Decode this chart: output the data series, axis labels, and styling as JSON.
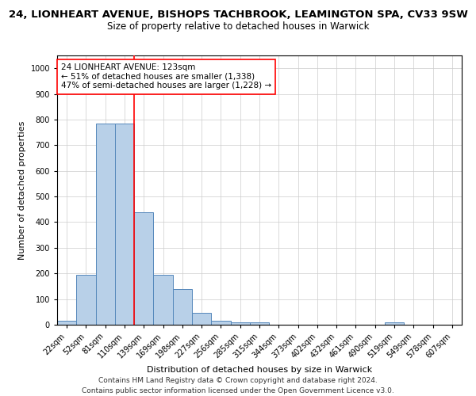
{
  "title_line1": "24, LIONHEART AVENUE, BISHOPS TACHBROOK, LEAMINGTON SPA, CV33 9SW",
  "title_line2": "Size of property relative to detached houses in Warwick",
  "xlabel": "Distribution of detached houses by size in Warwick",
  "ylabel": "Number of detached properties",
  "categories": [
    "22sqm",
    "52sqm",
    "81sqm",
    "110sqm",
    "139sqm",
    "169sqm",
    "198sqm",
    "227sqm",
    "256sqm",
    "285sqm",
    "315sqm",
    "344sqm",
    "373sqm",
    "402sqm",
    "432sqm",
    "461sqm",
    "490sqm",
    "519sqm",
    "549sqm",
    "578sqm",
    "607sqm"
  ],
  "values": [
    15,
    195,
    785,
    785,
    440,
    195,
    140,
    45,
    15,
    10,
    10,
    0,
    0,
    0,
    0,
    0,
    0,
    10,
    0,
    0,
    0
  ],
  "bar_color": "#b8d0e8",
  "bar_edge_color": "#5588bb",
  "bar_linewidth": 0.7,
  "vline_color": "red",
  "vline_linewidth": 1.2,
  "vline_pos": 3.5,
  "ylim": [
    0,
    1050
  ],
  "yticks": [
    0,
    100,
    200,
    300,
    400,
    500,
    600,
    700,
    800,
    900,
    1000
  ],
  "grid_color": "#cccccc",
  "background_color": "#ffffff",
  "annotation_line1": "24 LIONHEART AVENUE: 123sqm",
  "annotation_line2": "← 51% of detached houses are smaller (1,338)",
  "annotation_line3": "47% of semi-detached houses are larger (1,228) →",
  "annotation_box_color": "white",
  "annotation_box_edge": "red",
  "footer_line1": "Contains HM Land Registry data © Crown copyright and database right 2024.",
  "footer_line2": "Contains public sector information licensed under the Open Government Licence v3.0.",
  "title_fontsize": 9.5,
  "subtitle_fontsize": 8.5,
  "annotation_fontsize": 7.5,
  "footer_fontsize": 6.5,
  "xlabel_fontsize": 8,
  "ylabel_fontsize": 8,
  "tick_fontsize": 7
}
